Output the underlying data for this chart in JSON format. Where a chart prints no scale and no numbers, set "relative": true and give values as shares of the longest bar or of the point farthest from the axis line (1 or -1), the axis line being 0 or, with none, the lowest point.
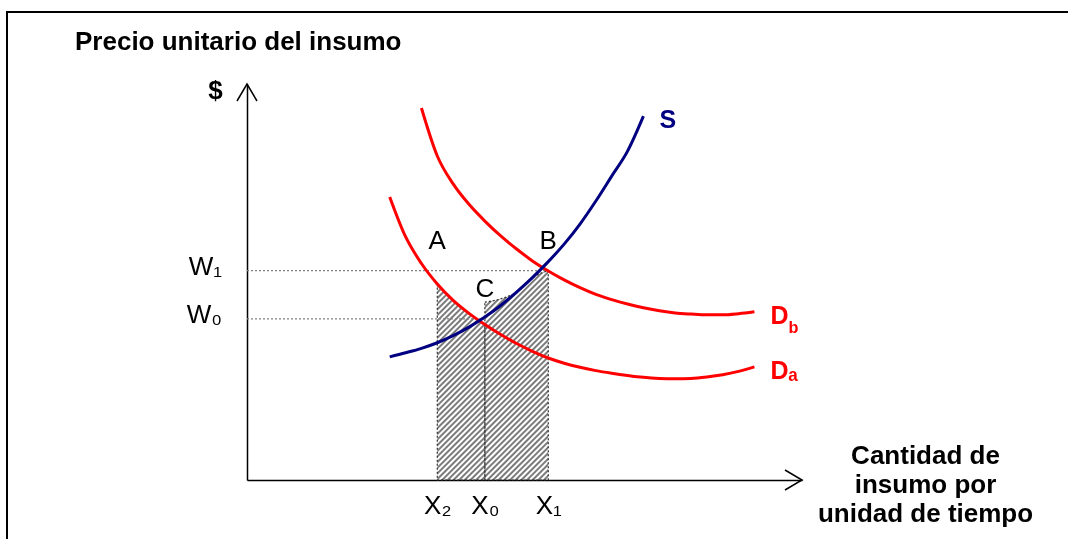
{
  "chart_data": {
    "type": "line",
    "relative": true,
    "title": "Precio unitario del insumo",
    "ylabel": "$",
    "xlabel": "Cantidad de\ninsumo por\nunidad de tiempo",
    "categories": [
      null,
      null,
      null,
      null,
      null,
      null,
      null,
      null,
      null,
      null,
      null,
      null,
      "X₂",
      null,
      null,
      "X₀",
      null,
      null,
      null,
      "X₁",
      null,
      null,
      null,
      null,
      null,
      null,
      null,
      null,
      null,
      null,
      null,
      null,
      null,
      null,
      null,
      null
    ],
    "series": [
      {
        "type": "area",
        "color": "#333333",
        "line_style": "dotted",
        "values": [
          null,
          null,
          null,
          null,
          null,
          null,
          null,
          null,
          null,
          null,
          null,
          null,
          0.527,
          0.483,
          0.448,
          0.418,
          null,
          null,
          null,
          null,
          null,
          null,
          null,
          null,
          null,
          null,
          null,
          null,
          null,
          null,
          null,
          null,
          null,
          null,
          null,
          null
        ]
      },
      {
        "type": "area",
        "color": "#333333",
        "line_style": "dotted",
        "values": [
          null,
          null,
          null,
          null,
          null,
          null,
          null,
          null,
          null,
          null,
          null,
          null,
          null,
          null,
          null,
          0.478,
          0.487,
          0.505,
          0.544,
          0.563,
          null,
          null,
          null,
          null,
          null,
          null,
          null,
          null,
          null,
          null,
          null,
          null,
          null,
          null,
          null,
          null
        ]
      },
      {
        "name": "W₁",
        "color": "#808080",
        "line_style": "dotted",
        "values": [
          0.563,
          0.563,
          0.563,
          0.563,
          0.563,
          0.563,
          0.563,
          0.563,
          0.563,
          0.563,
          0.563,
          0.563,
          0.563,
          0.563,
          0.563,
          0.563,
          0.563,
          0.563,
          0.563,
          0.563,
          null,
          null,
          null,
          null,
          null,
          null,
          null,
          null,
          null,
          null,
          null,
          null,
          null,
          null,
          null,
          null
        ]
      },
      {
        "name": "W₀",
        "color": "#808080",
        "line_style": "dotted",
        "values": [
          0.433,
          0.433,
          0.433,
          0.433,
          0.433,
          0.433,
          0.433,
          0.433,
          0.433,
          0.433,
          0.433,
          0.433,
          0.433,
          0.433,
          0.433,
          0.433,
          null,
          null,
          null,
          null,
          null,
          null,
          null,
          null,
          null,
          null,
          null,
          null,
          null,
          null,
          null,
          null,
          null,
          null,
          null,
          null
        ]
      },
      {
        "name": "Dₐ",
        "color": "#ff0000",
        "values": [
          null,
          null,
          null,
          null,
          null,
          null,
          null,
          null,
          null,
          0.761,
          0.654,
          0.582,
          0.527,
          0.483,
          0.448,
          0.418,
          0.391,
          0.367,
          0.346,
          0.328,
          0.314,
          0.303,
          0.294,
          0.287,
          0.281,
          0.276,
          0.273,
          0.272,
          0.273,
          0.277,
          0.283,
          0.292,
          0.304,
          null,
          null,
          null
        ]
      },
      {
        "name": "D$_{b}$",
        "color": "#ff0000",
        "values": [
          null,
          null,
          null,
          null,
          null,
          null,
          null,
          null,
          null,
          null,
          null,
          1,
          0.871,
          0.796,
          0.741,
          0.696,
          0.656,
          0.621,
          0.589,
          0.562,
          0.538,
          0.517,
          0.499,
          0.485,
          0.473,
          0.463,
          0.455,
          0.449,
          0.446,
          0.444,
          0.444,
          0.447,
          0.452,
          null,
          null,
          null
        ]
      },
      {
        "name": "S",
        "color": "#000080",
        "values": [
          null,
          null,
          null,
          null,
          null,
          null,
          null,
          null,
          null,
          0.331,
          0.342,
          0.354,
          0.369,
          0.388,
          0.411,
          0.438,
          0.469,
          0.505,
          0.544,
          0.587,
          0.634,
          0.688,
          0.75,
          0.817,
          0.884,
          0.978,
          null,
          null,
          null,
          null,
          null,
          null,
          null,
          null,
          null,
          null
        ]
      }
    ],
    "annotations": [
      {
        "text": "A",
        "x": "X₂",
        "y": 0.563
      },
      {
        "text": "B",
        "x": "X₁",
        "y": 0.563
      },
      {
        "text": "C",
        "x": "X₀",
        "y": 0.433
      }
    ]
  }
}
